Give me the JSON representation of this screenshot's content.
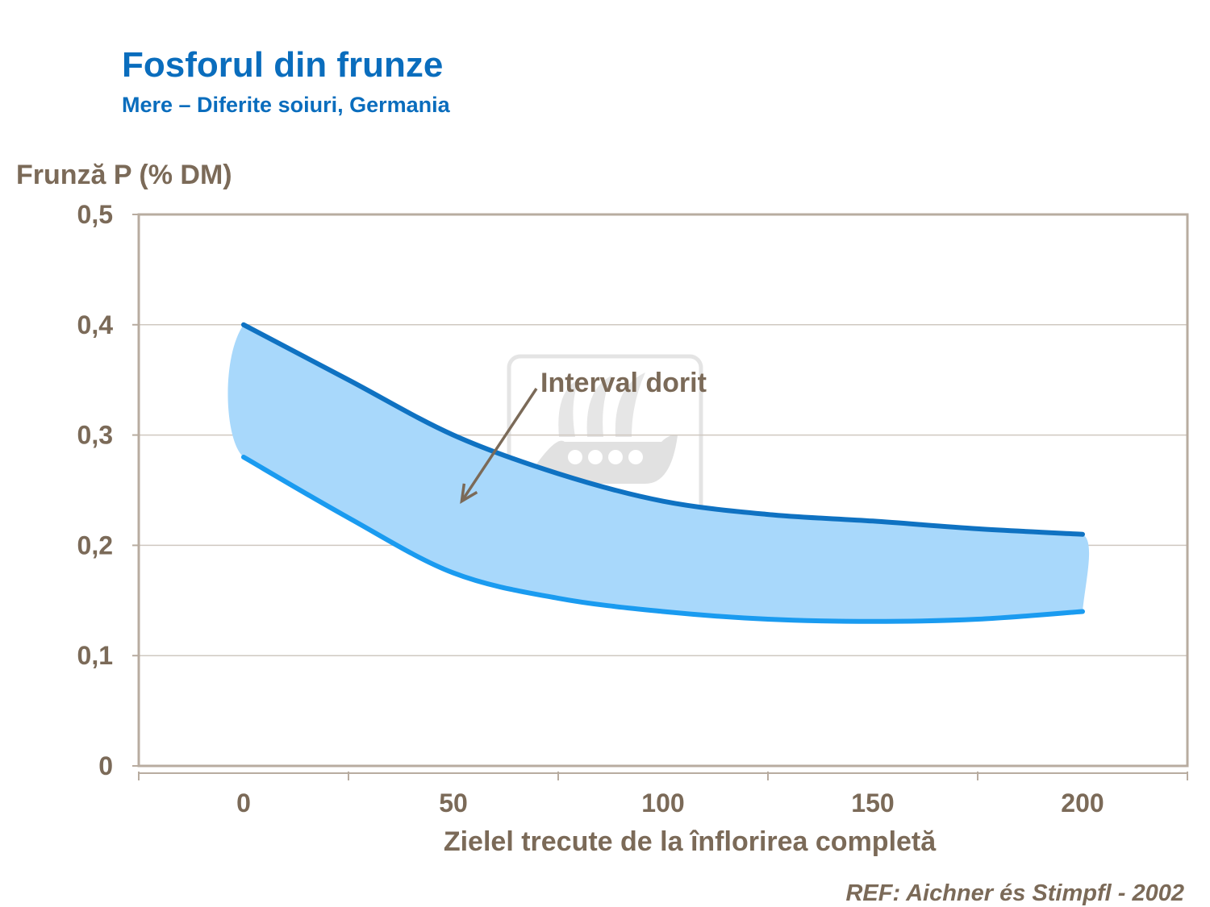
{
  "header": {
    "title": "Fosforul din frunze",
    "subtitle": "Mere – Diferite soiuri, Germania"
  },
  "footer": {
    "reference": "REF: Aichner és Stimpfl - 2002"
  },
  "watermark": {
    "text": "YARA"
  },
  "colors": {
    "title": "#0a6dbd",
    "text": "#7b6a58",
    "upper_line": "#0f72c2",
    "lower_line": "#1a9bf0",
    "band_fill": "#a8d8fb",
    "plot_border": "#b8aca0",
    "grid": "#cfc8c0"
  },
  "chart_data": {
    "type": "area",
    "title": "",
    "ylabel": "Frunză P (% DM)",
    "xlabel": "Zielel trecute de la înflorirea completă",
    "xlim": [
      -25,
      225
    ],
    "ylim": [
      0,
      0.5
    ],
    "x_ticks": [
      0,
      50,
      100,
      150,
      200
    ],
    "x_tick_labels": [
      "0",
      "50",
      "100",
      "150",
      "200"
    ],
    "x_minor_ticks": [
      -25,
      25,
      75,
      125,
      175,
      225
    ],
    "y_ticks": [
      0,
      0.1,
      0.2,
      0.3,
      0.4,
      0.5
    ],
    "y_tick_labels": [
      "0",
      "0,1",
      "0,2",
      "0,3",
      "0,4",
      "0,5"
    ],
    "grid": true,
    "legend": "none",
    "annotation": {
      "text": "Interval dorit",
      "points_to": [
        52,
        0.24
      ]
    },
    "series": [
      {
        "role": "upper",
        "x": [
          0,
          25,
          50,
          75,
          100,
          125,
          150,
          175,
          200
        ],
        "values": [
          0.4,
          0.35,
          0.3,
          0.265,
          0.24,
          0.228,
          0.222,
          0.215,
          0.21
        ]
      },
      {
        "role": "lower",
        "x": [
          0,
          25,
          50,
          75,
          100,
          125,
          150,
          175,
          200
        ],
        "values": [
          0.28,
          0.225,
          0.175,
          0.152,
          0.14,
          0.133,
          0.131,
          0.133,
          0.14
        ]
      }
    ]
  }
}
